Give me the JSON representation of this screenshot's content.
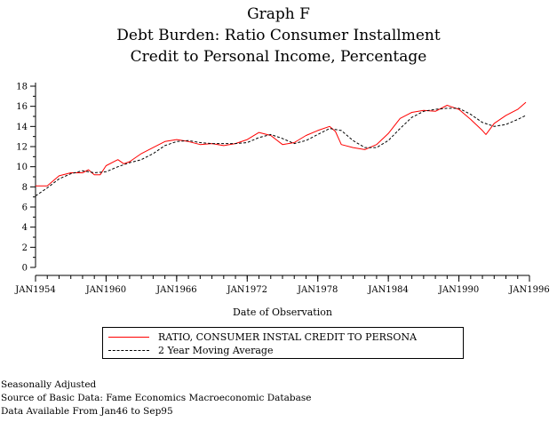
{
  "title": [
    "Graph F",
    "Debt Burden: Ratio Consumer Installment",
    "Credit to Personal Income, Percentage"
  ],
  "footnotes": [
    "Seasonally Adjusted",
    "Source of Basic Data: Fame Economics Macroeconomic Database",
    "Data Available From Jan46 to Sep95"
  ],
  "chart_data": {
    "type": "line",
    "xlabel": "Date of Observation",
    "ylabel": "",
    "xlim": [
      1954.0,
      1996.0
    ],
    "ylim": [
      0,
      18
    ],
    "x_tick_labels": [
      {
        "label": "JAN1954",
        "value": 1954.0
      },
      {
        "label": "JAN1960",
        "value": 1960.0
      },
      {
        "label": "JAN1966",
        "value": 1966.0
      },
      {
        "label": "JAN1972",
        "value": 1972.0
      },
      {
        "label": "JAN1978",
        "value": 1978.0
      },
      {
        "label": "JAN1984",
        "value": 1984.0
      },
      {
        "label": "JAN1990",
        "value": 1990.0
      },
      {
        "label": "JAN1996",
        "value": 1996.0
      }
    ],
    "y_ticks": [
      0,
      2,
      4,
      6,
      8,
      10,
      12,
      14,
      16,
      18
    ],
    "grid": false,
    "legend_position": "bottom",
    "series": [
      {
        "name": "RATIO, CONSUMER INSTAL CREDIT TO PERSONA",
        "color": "#ff0000",
        "style": "solid",
        "points": [
          [
            1954.0,
            8.1
          ],
          [
            1955.0,
            8.1
          ],
          [
            1956.0,
            9.1
          ],
          [
            1957.0,
            9.4
          ],
          [
            1958.0,
            9.4
          ],
          [
            1958.5,
            9.7
          ],
          [
            1959.0,
            9.2
          ],
          [
            1959.5,
            9.2
          ],
          [
            1960.0,
            10.1
          ],
          [
            1961.0,
            10.7
          ],
          [
            1961.5,
            10.3
          ],
          [
            1962.0,
            10.5
          ],
          [
            1963.0,
            11.3
          ],
          [
            1964.0,
            11.9
          ],
          [
            1965.0,
            12.5
          ],
          [
            1966.0,
            12.7
          ],
          [
            1967.0,
            12.5
          ],
          [
            1968.0,
            12.2
          ],
          [
            1969.0,
            12.3
          ],
          [
            1970.0,
            12.1
          ],
          [
            1971.0,
            12.3
          ],
          [
            1972.0,
            12.7
          ],
          [
            1973.0,
            13.4
          ],
          [
            1974.0,
            13.1
          ],
          [
            1975.0,
            12.2
          ],
          [
            1976.0,
            12.4
          ],
          [
            1977.0,
            13.1
          ],
          [
            1978.0,
            13.6
          ],
          [
            1979.0,
            14.0
          ],
          [
            1979.5,
            13.5
          ],
          [
            1980.0,
            12.2
          ],
          [
            1981.0,
            11.9
          ],
          [
            1982.0,
            11.7
          ],
          [
            1983.0,
            12.2
          ],
          [
            1984.0,
            13.3
          ],
          [
            1985.0,
            14.8
          ],
          [
            1986.0,
            15.4
          ],
          [
            1987.0,
            15.6
          ],
          [
            1988.0,
            15.5
          ],
          [
            1989.0,
            16.1
          ],
          [
            1990.0,
            15.7
          ],
          [
            1991.0,
            14.7
          ],
          [
            1992.0,
            13.6
          ],
          [
            1992.3,
            13.2
          ],
          [
            1993.0,
            14.3
          ],
          [
            1994.0,
            15.1
          ],
          [
            1995.0,
            15.7
          ],
          [
            1995.7,
            16.4
          ]
        ]
      },
      {
        "name": "2 Year Moving Average",
        "color": "#000000",
        "style": "dashed",
        "points": [
          [
            1954.0,
            7.1
          ],
          [
            1955.0,
            7.9
          ],
          [
            1956.0,
            8.8
          ],
          [
            1957.0,
            9.3
          ],
          [
            1958.0,
            9.6
          ],
          [
            1959.0,
            9.4
          ],
          [
            1960.0,
            9.5
          ],
          [
            1961.0,
            10.0
          ],
          [
            1962.0,
            10.4
          ],
          [
            1963.0,
            10.7
          ],
          [
            1964.0,
            11.3
          ],
          [
            1965.0,
            12.1
          ],
          [
            1966.0,
            12.5
          ],
          [
            1967.0,
            12.6
          ],
          [
            1968.0,
            12.4
          ],
          [
            1969.0,
            12.3
          ],
          [
            1970.0,
            12.3
          ],
          [
            1971.0,
            12.3
          ],
          [
            1972.0,
            12.4
          ],
          [
            1973.0,
            12.9
          ],
          [
            1974.0,
            13.2
          ],
          [
            1975.0,
            12.8
          ],
          [
            1976.0,
            12.3
          ],
          [
            1977.0,
            12.6
          ],
          [
            1978.0,
            13.2
          ],
          [
            1979.0,
            13.8
          ],
          [
            1980.0,
            13.6
          ],
          [
            1981.0,
            12.6
          ],
          [
            1982.0,
            11.9
          ],
          [
            1983.0,
            11.9
          ],
          [
            1984.0,
            12.6
          ],
          [
            1985.0,
            13.8
          ],
          [
            1986.0,
            14.9
          ],
          [
            1987.0,
            15.5
          ],
          [
            1988.0,
            15.7
          ],
          [
            1989.0,
            15.8
          ],
          [
            1990.0,
            15.8
          ],
          [
            1991.0,
            15.2
          ],
          [
            1992.0,
            14.4
          ],
          [
            1993.0,
            14.0
          ],
          [
            1994.0,
            14.2
          ],
          [
            1995.0,
            14.7
          ],
          [
            1995.7,
            15.1
          ]
        ]
      }
    ]
  }
}
